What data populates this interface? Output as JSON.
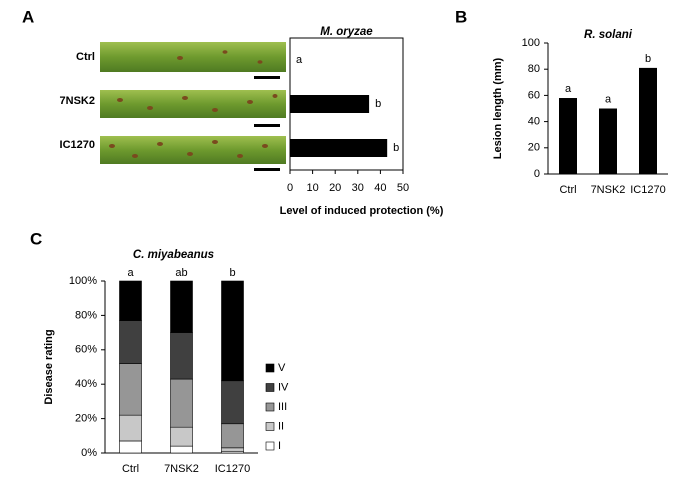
{
  "chart_data": [
    {
      "type": "hbar",
      "panel": "A",
      "title": "M. oryzae",
      "xlabel": "Level of induced protection (%)",
      "categories": [
        "Ctrl",
        "7NSK2",
        "IC1270"
      ],
      "values": [
        0,
        35,
        43
      ],
      "letters": [
        "a",
        "b",
        "b"
      ],
      "color": "#000000",
      "xlim": [
        0,
        50
      ],
      "xticks": [
        0,
        10,
        20,
        30,
        40,
        50
      ]
    },
    {
      "type": "bar",
      "panel": "B",
      "title": "R. solani",
      "ylabel": "Lesion length (mm)",
      "categories": [
        "Ctrl",
        "7NSK2",
        "IC1270"
      ],
      "values": [
        58,
        50,
        81
      ],
      "letters": [
        "a",
        "a",
        "b"
      ],
      "color": "#000000",
      "ylim": [
        0,
        100
      ],
      "yticks": [
        0,
        20,
        40,
        60,
        80,
        100
      ]
    },
    {
      "type": "stacked_bar",
      "panel": "C",
      "title": "C. miyabeanus",
      "ylabel": "Disease rating",
      "categories": [
        "Ctrl",
        "7NSK2",
        "IC1270"
      ],
      "letters": [
        "a",
        "ab",
        "b"
      ],
      "series": [
        {
          "name": "I",
          "color": "#ffffff",
          "values": [
            7,
            4,
            1
          ]
        },
        {
          "name": "II",
          "color": "#c8c8c8",
          "values": [
            15,
            11,
            2
          ]
        },
        {
          "name": "III",
          "color": "#969696",
          "values": [
            30,
            28,
            14
          ]
        },
        {
          "name": "IV",
          "color": "#404040",
          "values": [
            25,
            27,
            25
          ]
        },
        {
          "name": "V",
          "color": "#000000",
          "values": [
            23,
            30,
            58
          ]
        }
      ],
      "ylim": [
        0,
        100
      ],
      "yticks": [
        {
          "value": 0,
          "label": "0%"
        },
        {
          "value": 20,
          "label": "20%"
        },
        {
          "value": 40,
          "label": "40%"
        },
        {
          "value": 60,
          "label": "60%"
        },
        {
          "value": 80,
          "label": "80%"
        },
        {
          "value": 100,
          "label": "100%"
        }
      ]
    }
  ]
}
